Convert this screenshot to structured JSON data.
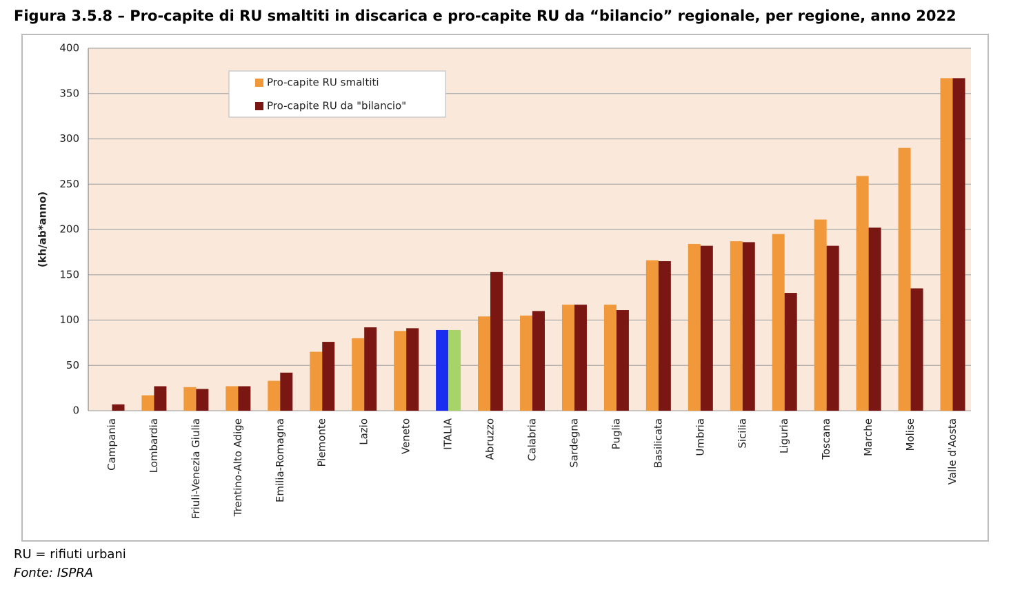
{
  "chart_data": {
    "type": "bar",
    "title": "Figura 3.5.8 – Pro-capite di RU smaltiti in discarica e pro-capite RU da “bilancio” regionale, per regione, anno 2022",
    "ylabel": "(kh/ab*anno)",
    "categories": [
      "Campania",
      "Lombardia",
      "Friuli-Venezia Giulia",
      "Trentino-Alto Adige",
      "Emilia-Romagna",
      "Piemonte",
      "Lazio",
      "Veneto",
      "ITALIA",
      "Abruzzo",
      "Calabria",
      "Sardegna",
      "Puglia",
      "Basilicata",
      "Umbria",
      "Sicilia",
      "Liguria",
      "Toscana",
      "Marche",
      "Molise",
      "Valle d'Aosta"
    ],
    "series": [
      {
        "name": "Pro-capite RU smaltiti",
        "color": "#f0983a",
        "values": [
          0,
          17,
          26,
          27,
          33,
          65,
          80,
          88,
          89,
          104,
          105,
          117,
          117,
          166,
          184,
          187,
          195,
          211,
          259,
          290,
          367
        ]
      },
      {
        "name": "Pro-capite RU da \"bilancio\"",
        "color": "#7b1712",
        "values": [
          7,
          27,
          24,
          27,
          42,
          76,
          92,
          91,
          89,
          153,
          110,
          117,
          111,
          165,
          182,
          186,
          130,
          182,
          202,
          135,
          367
        ]
      }
    ],
    "highlight": {
      "category_index": 8,
      "colors": [
        "#1a2cf0",
        "#a6d468"
      ]
    },
    "ylim": [
      0,
      400
    ],
    "yticks": [
      0,
      50,
      100,
      150,
      200,
      250,
      300,
      350,
      400
    ],
    "grid": true,
    "legend": "top-left",
    "notes": [
      "RU = rifiuti urbani",
      "Fonte: ISPRA"
    ]
  }
}
